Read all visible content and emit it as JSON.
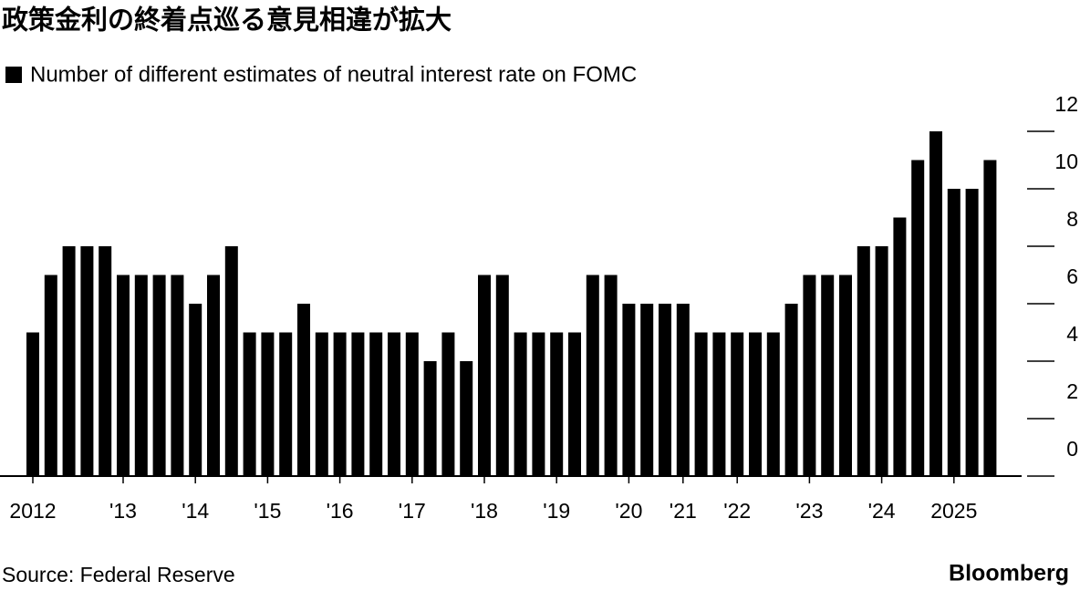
{
  "chart_data": {
    "type": "bar",
    "title": "政策金利の終着点巡る意見相違が拡大",
    "categories": [
      "2012",
      null,
      null,
      null,
      null,
      "'13",
      null,
      null,
      null,
      "'14",
      null,
      null,
      null,
      "'15",
      null,
      null,
      null,
      "'16",
      null,
      null,
      null,
      "'17",
      null,
      null,
      null,
      "'18",
      null,
      null,
      null,
      "'19",
      null,
      null,
      null,
      "'20",
      null,
      null,
      "'21",
      null,
      null,
      "'22",
      null,
      null,
      null,
      "'23",
      null,
      null,
      null,
      "'24",
      null,
      null,
      null,
      "2025",
      null,
      null
    ],
    "series": [
      {
        "name": "Number of different estimates of neutral interest rate on FOMC",
        "color": "#000000",
        "values": [
          5,
          7,
          8,
          8,
          8,
          7,
          7,
          7,
          7,
          6,
          7,
          8,
          5,
          5,
          5,
          6,
          5,
          5,
          5,
          5,
          5,
          5,
          4,
          5,
          4,
          7,
          7,
          5,
          5,
          5,
          5,
          7,
          7,
          6,
          6,
          6,
          6,
          5,
          5,
          5,
          5,
          5,
          6,
          7,
          7,
          7,
          8,
          8,
          9,
          11,
          12,
          10,
          10,
          11
        ]
      }
    ],
    "ylim": [
      0,
      12
    ],
    "yticks": [
      0,
      2,
      4,
      6,
      8,
      10,
      12
    ],
    "source": "Source: Federal Reserve",
    "brand": "Bloomberg"
  }
}
